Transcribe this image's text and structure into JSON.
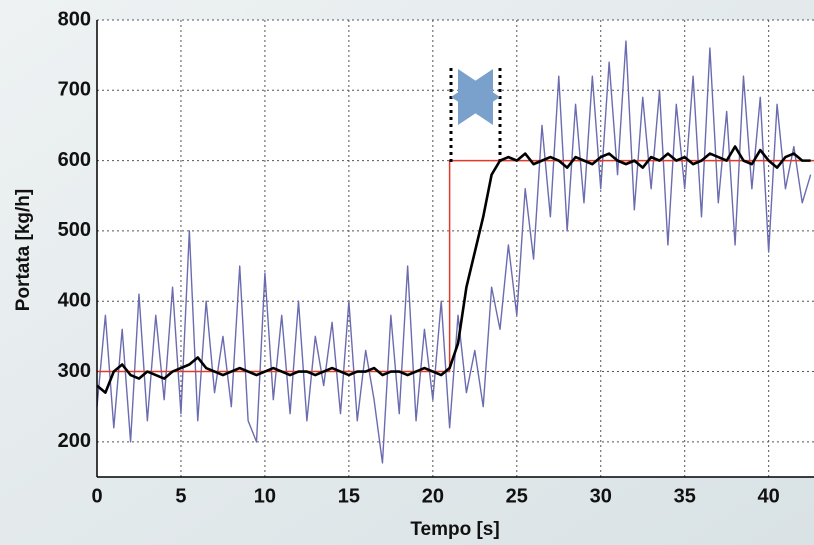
{
  "chart_data": {
    "type": "line",
    "xlabel": "Tempo [s]",
    "ylabel": "Portata [kg/h]",
    "xlim": [
      0,
      42.7
    ],
    "ylim": [
      150,
      800
    ],
    "xticks": [
      0,
      5,
      10,
      15,
      20,
      25,
      30,
      35,
      40
    ],
    "yticks": [
      200,
      300,
      400,
      500,
      600,
      700,
      800
    ],
    "grid": true,
    "x": [
      0,
      0.5,
      1,
      1.5,
      2,
      2.5,
      3,
      3.5,
      4,
      4.5,
      5,
      5.5,
      6,
      6.5,
      7,
      7.5,
      8,
      8.5,
      9,
      9.5,
      10,
      10.5,
      11,
      11.5,
      12,
      12.5,
      13,
      13.5,
      14,
      14.5,
      15,
      15.5,
      16,
      16.5,
      17,
      17.5,
      18,
      18.5,
      19,
      19.5,
      20,
      20.5,
      21,
      21.5,
      22,
      22.5,
      23,
      23.5,
      24,
      24.5,
      25,
      25.5,
      26,
      26.5,
      27,
      27.5,
      28,
      28.5,
      29,
      29.5,
      30,
      30.5,
      31,
      31.5,
      32,
      32.5,
      33,
      33.5,
      34,
      34.5,
      35,
      35.5,
      36,
      36.5,
      37,
      37.5,
      38,
      38.5,
      39,
      39.5,
      40,
      40.5,
      41,
      41.5,
      42,
      42.5
    ],
    "series": [
      {
        "color": "#6b6bb0",
        "width": 1.4,
        "values": [
          250,
          380,
          220,
          360,
          200,
          410,
          230,
          380,
          260,
          420,
          240,
          500,
          230,
          400,
          270,
          350,
          250,
          450,
          230,
          200,
          440,
          260,
          380,
          240,
          400,
          230,
          350,
          280,
          370,
          240,
          400,
          230,
          330,
          260,
          170,
          380,
          240,
          450,
          230,
          360,
          260,
          400,
          220,
          380,
          270,
          330,
          250,
          420,
          360,
          480,
          380,
          560,
          460,
          650,
          520,
          720,
          500,
          680,
          540,
          720,
          560,
          740,
          580,
          770,
          530,
          690,
          560,
          700,
          480,
          680,
          560,
          720,
          520,
          760,
          540,
          670,
          480,
          720,
          560,
          690,
          470,
          680,
          560,
          620,
          540,
          580
        ]
      },
      {
        "color": "#e03a2a",
        "width": 1.5,
        "x": [
          0,
          21,
          21,
          42.7
        ],
        "values": [
          300,
          300,
          600,
          600
        ]
      },
      {
        "color": "#000000",
        "width": 2.6,
        "values": [
          280,
          270,
          300,
          310,
          295,
          290,
          300,
          295,
          290,
          300,
          305,
          310,
          320,
          305,
          300,
          295,
          300,
          305,
          300,
          295,
          300,
          305,
          300,
          295,
          300,
          300,
          295,
          300,
          305,
          300,
          295,
          300,
          300,
          305,
          295,
          300,
          300,
          295,
          300,
          305,
          300,
          295,
          305,
          340,
          420,
          470,
          520,
          580,
          600,
          605,
          600,
          610,
          595,
          600,
          605,
          600,
          590,
          605,
          600,
          595,
          605,
          610,
          600,
          595,
          600,
          590,
          605,
          600,
          610,
          600,
          605,
          595,
          600,
          610,
          605,
          600,
          620,
          600,
          595,
          615,
          600,
          590,
          605,
          610,
          600,
          600
        ]
      }
    ]
  }
}
